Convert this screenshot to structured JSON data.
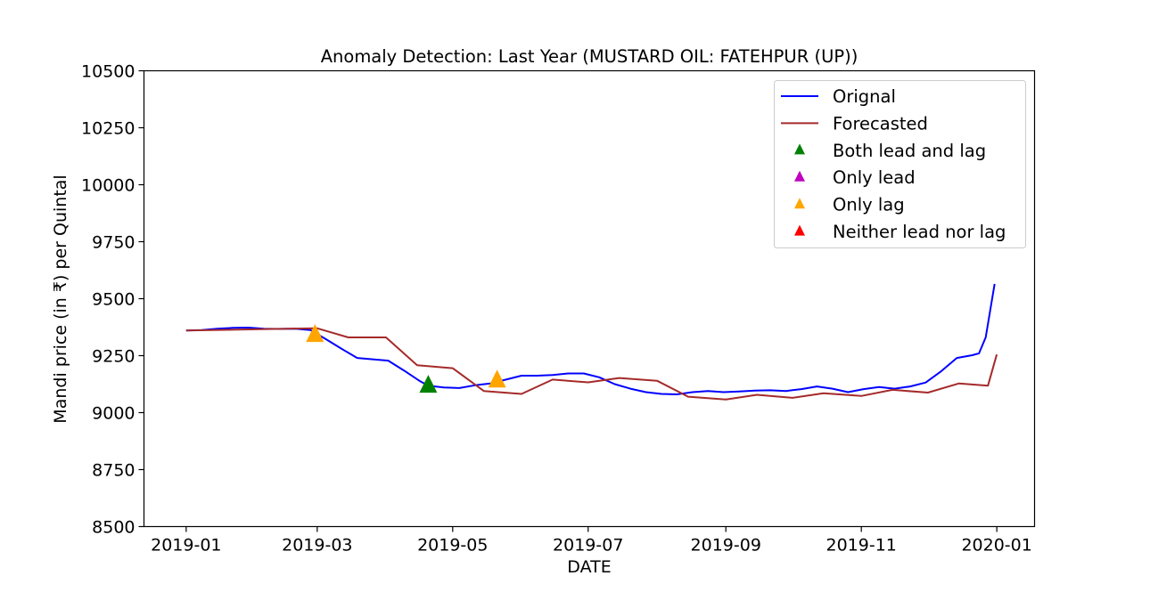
{
  "chart_data": {
    "type": "line",
    "title": "Anomaly Detection: Last Year (MUSTARD OIL: FATEHPUR (UP))",
    "xlabel": "DATE",
    "ylabel": "Mandi price (in ₹) per Quintal",
    "ylim": [
      8500,
      10500
    ],
    "xlim": [
      "2018-12-13",
      "2020-01-18"
    ],
    "yticks": [
      8500,
      8750,
      9000,
      9250,
      9500,
      9750,
      10000,
      10250,
      10500
    ],
    "xticks": [
      "2019-01-01",
      "2019-03-01",
      "2019-05-01",
      "2019-07-01",
      "2019-09-01",
      "2019-11-01",
      "2020-01-01"
    ],
    "xtick_labels": [
      "2019-01",
      "2019-03",
      "2019-05",
      "2019-07",
      "2019-09",
      "2019-11",
      "2020-01"
    ],
    "grid": false,
    "legend_position": "top-right",
    "series": [
      {
        "name": "Orignal",
        "color": "#0000ff",
        "points": [
          [
            "2019-01-01",
            9360
          ],
          [
            "2019-01-08",
            9362
          ],
          [
            "2019-01-15",
            9368
          ],
          [
            "2019-01-22",
            9372
          ],
          [
            "2019-01-29",
            9373
          ],
          [
            "2019-02-05",
            9368
          ],
          [
            "2019-02-12",
            9367
          ],
          [
            "2019-02-19",
            9368
          ],
          [
            "2019-02-26",
            9362
          ],
          [
            "2019-03-01",
            9345
          ],
          [
            "2019-03-05",
            9322
          ],
          [
            "2019-03-12",
            9280
          ],
          [
            "2019-03-19",
            9240
          ],
          [
            "2019-03-26",
            9234
          ],
          [
            "2019-04-02",
            9228
          ],
          [
            "2019-04-09",
            9185
          ],
          [
            "2019-04-16",
            9140
          ],
          [
            "2019-04-20",
            9118
          ],
          [
            "2019-04-27",
            9110
          ],
          [
            "2019-05-04",
            9108
          ],
          [
            "2019-05-11",
            9120
          ],
          [
            "2019-05-18",
            9128
          ],
          [
            "2019-05-25",
            9145
          ],
          [
            "2019-06-01",
            9162
          ],
          [
            "2019-06-08",
            9162
          ],
          [
            "2019-06-15",
            9165
          ],
          [
            "2019-06-22",
            9172
          ],
          [
            "2019-06-29",
            9172
          ],
          [
            "2019-07-06",
            9155
          ],
          [
            "2019-07-13",
            9125
          ],
          [
            "2019-07-20",
            9105
          ],
          [
            "2019-07-27",
            9090
          ],
          [
            "2019-08-03",
            9082
          ],
          [
            "2019-08-10",
            9080
          ],
          [
            "2019-08-17",
            9090
          ],
          [
            "2019-08-24",
            9095
          ],
          [
            "2019-08-31",
            9090
          ],
          [
            "2019-09-07",
            9093
          ],
          [
            "2019-09-14",
            9097
          ],
          [
            "2019-09-21",
            9098
          ],
          [
            "2019-09-28",
            9095
          ],
          [
            "2019-10-05",
            9103
          ],
          [
            "2019-10-12",
            9115
          ],
          [
            "2019-10-19",
            9105
          ],
          [
            "2019-10-26",
            9090
          ],
          [
            "2019-11-02",
            9103
          ],
          [
            "2019-11-09",
            9112
          ],
          [
            "2019-11-16",
            9105
          ],
          [
            "2019-11-23",
            9115
          ],
          [
            "2019-11-30",
            9132
          ],
          [
            "2019-12-07",
            9182
          ],
          [
            "2019-12-14",
            9240
          ],
          [
            "2019-12-21",
            9252
          ],
          [
            "2019-12-24",
            9260
          ],
          [
            "2019-12-27",
            9330
          ],
          [
            "2019-12-31",
            9565
          ]
        ]
      },
      {
        "name": "Forecasted",
        "color": "#a52a2a",
        "points": [
          [
            "2019-01-01",
            9360
          ],
          [
            "2019-02-15",
            9368
          ],
          [
            "2019-03-01",
            9370
          ],
          [
            "2019-03-15",
            9330
          ],
          [
            "2019-04-01",
            9330
          ],
          [
            "2019-04-15",
            9208
          ],
          [
            "2019-05-01",
            9195
          ],
          [
            "2019-05-15",
            9095
          ],
          [
            "2019-06-01",
            9082
          ],
          [
            "2019-06-15",
            9145
          ],
          [
            "2019-07-01",
            9133
          ],
          [
            "2019-07-15",
            9152
          ],
          [
            "2019-08-01",
            9140
          ],
          [
            "2019-08-15",
            9070
          ],
          [
            "2019-09-01",
            9058
          ],
          [
            "2019-09-15",
            9078
          ],
          [
            "2019-10-01",
            9065
          ],
          [
            "2019-10-15",
            9085
          ],
          [
            "2019-11-01",
            9073
          ],
          [
            "2019-11-15",
            9100
          ],
          [
            "2019-12-01",
            9088
          ],
          [
            "2019-12-15",
            9128
          ],
          [
            "2019-12-28",
            9118
          ],
          [
            "2020-01-01",
            9255
          ]
        ]
      }
    ],
    "anomalies": [
      {
        "category": "Both lead and lag",
        "color": "#008000",
        "points": [
          [
            "2019-04-20",
            9117
          ]
        ]
      },
      {
        "category": "Only lead",
        "color": "#bf00bf",
        "points": []
      },
      {
        "category": "Only lag",
        "color": "#ffa500",
        "points": [
          [
            "2019-02-28",
            9340
          ],
          [
            "2019-05-21",
            9140
          ]
        ]
      },
      {
        "category": "Neither lead nor lag",
        "color": "#ff0000",
        "points": []
      }
    ],
    "legend": [
      {
        "label": "Orignal",
        "kind": "line",
        "color": "#0000ff"
      },
      {
        "label": "Forecasted",
        "kind": "line",
        "color": "#a52a2a"
      },
      {
        "label": "Both lead and lag",
        "kind": "marker",
        "color": "#008000"
      },
      {
        "label": "Only lead",
        "kind": "marker",
        "color": "#bf00bf"
      },
      {
        "label": "Only lag",
        "kind": "marker",
        "color": "#ffa500"
      },
      {
        "label": "Neither lead nor lag",
        "kind": "marker",
        "color": "#ff0000"
      }
    ]
  }
}
